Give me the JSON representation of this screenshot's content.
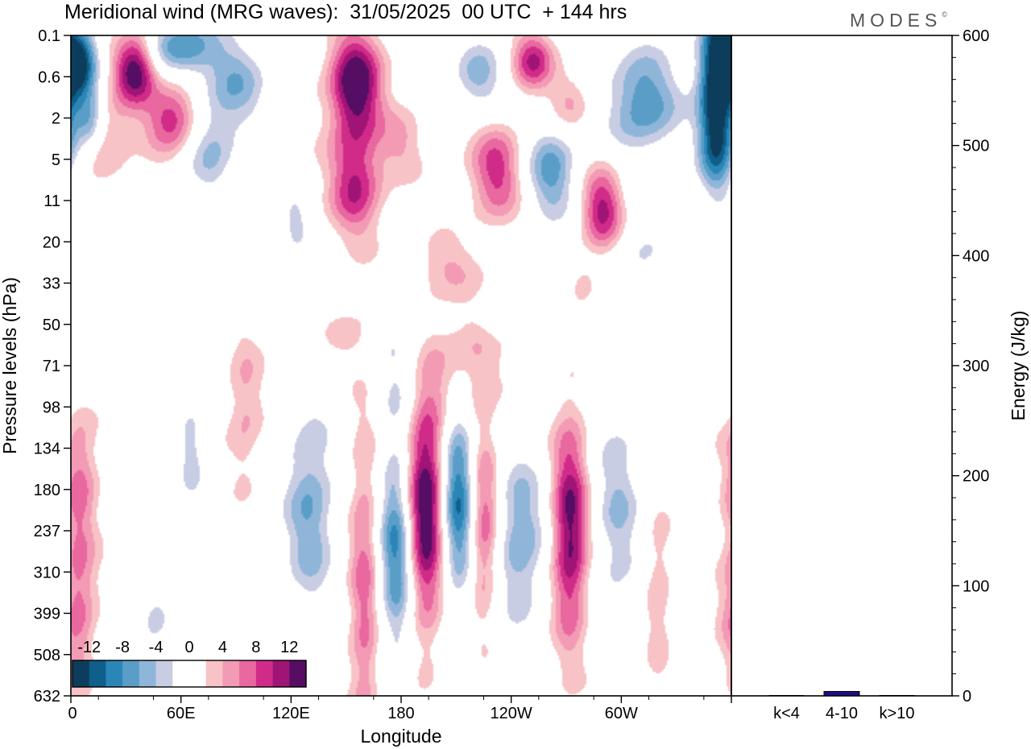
{
  "chart_data": {
    "type": "heatmap",
    "title": "Meridional wind (MRG waves):  31/05/2025  00 UTC  + 144 hrs",
    "brand": "MODES",
    "brand_mark": "©",
    "xlabel": "Longitude",
    "ylabel": "Pressure levels (hPa)",
    "x_ticks": [
      "0",
      "60E",
      "120E",
      "180",
      "120W",
      "60W"
    ],
    "y_ticks": [
      "0.1",
      "0.6",
      "2",
      "5",
      "11",
      "20",
      "33",
      "50",
      "71",
      "98",
      "134",
      "180",
      "237",
      "310",
      "399",
      "508",
      "632"
    ],
    "colorbar": {
      "labels": [
        "-12",
        "-8",
        "-4",
        "0",
        "4",
        "8",
        "12"
      ],
      "levels": [
        -14,
        -12,
        -10,
        -8,
        -6,
        -4,
        -2,
        2,
        4,
        6,
        8,
        10,
        12,
        14
      ],
      "colors": [
        "#0d3d5c",
        "#0f5f8a",
        "#2b86b8",
        "#5a9ec8",
        "#8fb6d9",
        "#c9cde3",
        "#ffffff",
        "#ffffff",
        "#f8c3c6",
        "#f39ab5",
        "#e8689f",
        "#d12b8a",
        "#a01476",
        "#560d64"
      ]
    },
    "right_panel": {
      "ylabel": "Energy (J/kg)",
      "y_ticks": [
        "0",
        "100",
        "200",
        "300",
        "400",
        "500",
        "600"
      ],
      "ylim": [
        0,
        600
      ],
      "categories": [
        "k<4",
        "4-10",
        "k>10"
      ],
      "values": [
        0,
        4,
        0
      ],
      "bar_color": "#1c0f8c"
    },
    "field": [
      {
        "lon": 193,
        "lev": 11.4,
        "a": 15.5,
        "sx": 8,
        "sy": 2.0
      },
      {
        "lon": 178,
        "lev": 12.4,
        "a": -12,
        "sx": 7,
        "sy": 1.8
      },
      {
        "lon": 211,
        "lev": 11.2,
        "a": -13,
        "sx": 7,
        "sy": 1.7
      },
      {
        "lon": 225,
        "lev": 11.8,
        "a": 9,
        "sx": 6,
        "sy": 1.6
      },
      {
        "lon": 245,
        "lev": 12.2,
        "a": -8,
        "sx": 10,
        "sy": 1.5
      },
      {
        "lon": 272,
        "lev": 12.0,
        "a": 13,
        "sx": 7,
        "sy": 1.9
      },
      {
        "lon": 160,
        "lev": 13.5,
        "a": 7,
        "sx": 6,
        "sy": 3.0
      },
      {
        "lon": 298,
        "lev": 11.5,
        "a": -6,
        "sx": 9,
        "sy": 2.0
      },
      {
        "lon": 130,
        "lev": 11.5,
        "a": -8,
        "sx": 10,
        "sy": 1.8
      },
      {
        "lon": 4,
        "lev": 13.8,
        "a": 7,
        "sx": 7,
        "sy": 1.4
      },
      {
        "lon": 5,
        "lev": 10.6,
        "a": 6,
        "sx": 7,
        "sy": 1.2
      },
      {
        "lon": 66,
        "lev": 10.0,
        "a": -5,
        "sx": 6,
        "sy": 1.0
      },
      {
        "lon": 95,
        "lev": 9.0,
        "a": 4.5,
        "sx": 7,
        "sy": 1.3
      },
      {
        "lon": 45,
        "lev": 14.5,
        "a": -4,
        "sx": 8,
        "sy": 1.3
      },
      {
        "lon": 320,
        "lev": 13.5,
        "a": 4,
        "sx": 5,
        "sy": 1.5
      },
      {
        "lon": 215,
        "lev": 8.0,
        "a": 5,
        "sx": 14,
        "sy": 1.0
      },
      {
        "lon": 180,
        "lev": 8.0,
        "a": -4,
        "sx": 10,
        "sy": 1.1
      },
      {
        "lon": 35,
        "lev": 0.8,
        "a": 15,
        "sx": 8,
        "sy": 0.6
      },
      {
        "lon": 5,
        "lev": 0.6,
        "a": -15,
        "sx": 7,
        "sy": 0.6
      },
      {
        "lon": 60,
        "lev": 0.3,
        "a": -10,
        "sx": 14,
        "sy": 0.5
      },
      {
        "lon": 90,
        "lev": 1.2,
        "a": -7,
        "sx": 12,
        "sy": 0.8
      },
      {
        "lon": 76,
        "lev": 2.8,
        "a": -6,
        "sx": 10,
        "sy": 0.8
      },
      {
        "lon": 55,
        "lev": 2.0,
        "a": 10,
        "sx": 10,
        "sy": 0.6
      },
      {
        "lon": 20,
        "lev": 2.6,
        "a": 5,
        "sx": 8,
        "sy": 0.7
      },
      {
        "lon": 10,
        "lev": 2.0,
        "a": -8,
        "sx": 6,
        "sy": 0.5
      },
      {
        "lon": 155,
        "lev": 1.2,
        "a": 15,
        "sx": 10,
        "sy": 0.9
      },
      {
        "lon": 155,
        "lev": 3.6,
        "a": 10,
        "sx": 10,
        "sy": 0.9
      },
      {
        "lon": 122,
        "lev": 4.6,
        "a": -5,
        "sx": 7,
        "sy": 0.6
      },
      {
        "lon": 180,
        "lev": 2.6,
        "a": 4,
        "sx": 9,
        "sy": 0.6
      },
      {
        "lon": 222,
        "lev": 1.0,
        "a": -7,
        "sx": 10,
        "sy": 0.6
      },
      {
        "lon": 252,
        "lev": 0.6,
        "a": 10,
        "sx": 8,
        "sy": 0.5
      },
      {
        "lon": 272,
        "lev": 1.6,
        "a": 5,
        "sx": 8,
        "sy": 0.5
      },
      {
        "lon": 232,
        "lev": 3.3,
        "a": 9,
        "sx": 10,
        "sy": 0.8
      },
      {
        "lon": 262,
        "lev": 3.3,
        "a": -9,
        "sx": 10,
        "sy": 0.8
      },
      {
        "lon": 290,
        "lev": 4.2,
        "a": 11,
        "sx": 8,
        "sy": 0.7
      },
      {
        "lon": 312,
        "lev": 1.6,
        "a": -10,
        "sx": 14,
        "sy": 0.9
      },
      {
        "lon": 352,
        "lev": 0.7,
        "a": -16,
        "sx": 7,
        "sy": 1.1
      },
      {
        "lon": 352,
        "lev": 2.6,
        "a": -12,
        "sx": 7,
        "sy": 0.9
      },
      {
        "lon": 310,
        "lev": 5.6,
        "a": -4,
        "sx": 12,
        "sy": 0.9
      },
      {
        "lon": 205,
        "lev": 5.6,
        "a": 4,
        "sx": 12,
        "sy": 0.5
      },
      {
        "lon": 20,
        "lev": 5.5,
        "a": -3.5,
        "sx": 12,
        "sy": 1.0
      },
      {
        "lon": 150,
        "lev": 7.2,
        "a": 3,
        "sx": 8,
        "sy": 0.4
      },
      {
        "lon": 280,
        "lev": 6.0,
        "a": 3.5,
        "sx": 5,
        "sy": 0.3
      },
      {
        "lon": 232,
        "lev": 6.8,
        "a": -3,
        "sx": 7,
        "sy": 0.4
      }
    ]
  }
}
